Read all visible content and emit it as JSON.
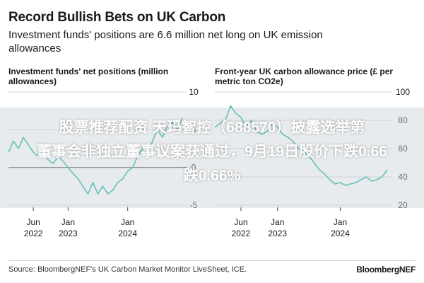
{
  "header": {
    "title": "Record Bullish Bets on UK Carbon",
    "subtitle": "Investment funds' positions are 6.6 million net long on UK emission allowances"
  },
  "panels": {
    "left": {
      "title": "Investment funds' net positions (million allowances)"
    },
    "right": {
      "title": "Front-year UK carbon allowance price (£ per metric ton CO2e)"
    }
  },
  "overlay": {
    "line1": "股票推荐配资 天玛智控（688570）披露选举第",
    "line2": "董事会非独立董事议案获通过，9月19日股价下跌0.66",
    "line3": "跌0.66%"
  },
  "footer": {
    "source": "Source: BloombergNEF's UK Carbon Market Monitor LiveSheet, ICE.",
    "brand": "BloombergNEF"
  },
  "colors": {
    "line": "#14b3a0",
    "grid": "#d6d6d6",
    "zero": "#444444",
    "text": "#1a1a1a"
  },
  "chart_data": [
    {
      "type": "line",
      "title": "Investment funds' net positions (million allowances)",
      "ylim": [
        -5,
        10
      ],
      "yticks": [
        10,
        5,
        0,
        -5
      ],
      "grid": true,
      "x_ticks": [
        {
          "x": "2022-06",
          "line1": "Jun",
          "line2": "2022"
        },
        {
          "x": "2023-01",
          "line1": "Jan",
          "line2": "2023"
        },
        {
          "x": "2024-01",
          "line1": "Jan",
          "line2": "2024"
        }
      ],
      "xlim": [
        "2022-01",
        "2024-12"
      ],
      "series": [
        {
          "x": [
            "2022-01",
            "2022-02",
            "2022-03",
            "2022-04",
            "2022-05",
            "2022-06",
            "2022-07",
            "2022-08",
            "2022-09",
            "2022-10",
            "2022-11",
            "2022-12",
            "2023-01",
            "2023-02",
            "2023-03",
            "2023-04",
            "2023-05",
            "2023-06",
            "2023-07",
            "2023-08",
            "2023-09",
            "2023-10",
            "2023-11",
            "2023-12",
            "2024-01",
            "2024-02",
            "2024-03",
            "2024-04",
            "2024-05",
            "2024-06",
            "2024-07",
            "2024-08",
            "2024-09",
            "2024-10",
            "2024-11",
            "2024-12"
          ],
          "values": [
            2.0,
            3.5,
            2.5,
            4.0,
            3.0,
            2.0,
            1.5,
            2.5,
            1.0,
            0.5,
            1.5,
            0.8,
            0.0,
            -0.8,
            -1.5,
            -2.5,
            -3.5,
            -2.0,
            -3.5,
            -2.5,
            -3.5,
            -3.0,
            -2.0,
            -1.5,
            -0.5,
            0.0,
            1.5,
            2.5,
            1.5,
            3.5,
            5.0,
            4.0,
            5.5,
            6.0,
            5.0,
            6.6
          ]
        }
      ]
    },
    {
      "type": "line",
      "title": "Front-year UK carbon allowance price (£ per metric ton CO2e)",
      "ylim": [
        20,
        100
      ],
      "yticks": [
        100,
        80,
        60,
        40,
        20
      ],
      "grid": true,
      "x_ticks": [
        {
          "x": "2022-06",
          "line1": "Jun",
          "line2": "2022"
        },
        {
          "x": "2023-01",
          "line1": "Jan",
          "line2": "2023"
        },
        {
          "x": "2024-01",
          "line1": "Jan",
          "line2": "2024"
        }
      ],
      "xlim": [
        "2022-01",
        "2024-10"
      ],
      "series": [
        {
          "x": [
            "2022-01",
            "2022-02",
            "2022-03",
            "2022-04",
            "2022-05",
            "2022-06",
            "2022-07",
            "2022-08",
            "2022-09",
            "2022-10",
            "2022-11",
            "2022-12",
            "2023-01",
            "2023-02",
            "2023-03",
            "2023-04",
            "2023-05",
            "2023-06",
            "2023-07",
            "2023-08",
            "2023-09",
            "2023-10",
            "2023-11",
            "2023-12",
            "2024-01",
            "2024-02",
            "2024-03",
            "2024-04",
            "2024-05",
            "2024-06",
            "2024-07",
            "2024-08",
            "2024-09",
            "2024-10"
          ],
          "values": [
            75,
            78,
            80,
            90,
            85,
            82,
            75,
            80,
            72,
            70,
            72,
            78,
            75,
            70,
            68,
            65,
            60,
            58,
            55,
            50,
            45,
            42,
            38,
            35,
            36,
            34,
            35,
            36,
            38,
            40,
            37,
            38,
            40,
            45
          ]
        }
      ]
    }
  ]
}
